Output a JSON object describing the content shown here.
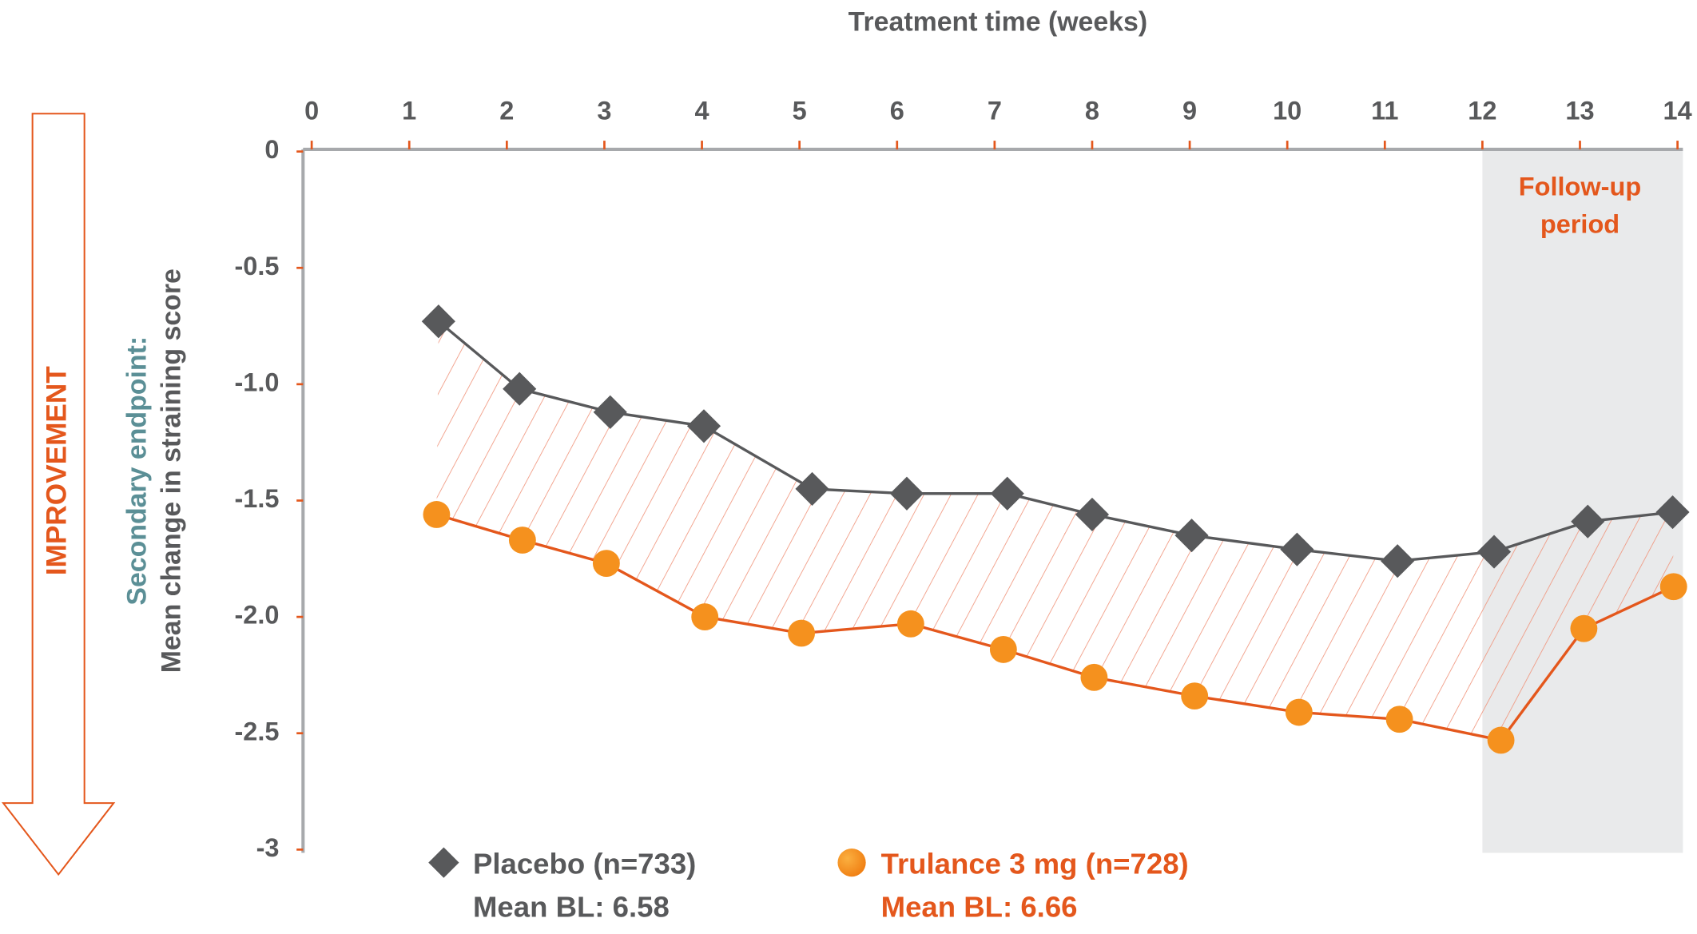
{
  "chart_data": {
    "type": "line",
    "x_label": "Treatment time (weeks)",
    "y_label": [
      "Secondary endpoint:",
      "Mean change in straining score"
    ],
    "side_label": "IMPROVEMENT",
    "xlim": [
      0,
      14
    ],
    "xticks": [
      0,
      1,
      2,
      3,
      4,
      5,
      6,
      7,
      8,
      9,
      10,
      11,
      12,
      13,
      14
    ],
    "ylim": [
      0,
      -3
    ],
    "yticks": [
      0,
      -0.5,
      {
        "value": -1,
        "label": "-1.0"
      },
      -1.5,
      {
        "value": -2,
        "label": "-2.0"
      },
      -2.5,
      -3
    ],
    "shaded_region": {
      "xlim": [
        12,
        14
      ],
      "label": [
        "Follow-up",
        "period"
      ]
    },
    "series": [
      {
        "name": "Placebo (n=733)",
        "baseline": "Mean BL: 6.58",
        "color": "#58595b",
        "marker": "diamond",
        "x": [
          1.3,
          2.13,
          3.06,
          4.02,
          5.13,
          6.1,
          7.13,
          8.0,
          9.02,
          10.1,
          11.13,
          12.12,
          13.08,
          13.95
        ],
        "values": [
          -0.73,
          -1.02,
          -1.12,
          -1.18,
          -1.45,
          -1.47,
          -1.47,
          -1.56,
          -1.65,
          -1.71,
          -1.76,
          -1.72,
          -1.59,
          -1.55
        ]
      },
      {
        "name": "Trulance 3 mg (n=728)",
        "baseline": "Mean BL: 6.66",
        "color": "#e4571c",
        "marker_color": "#f5911e",
        "marker": "circle",
        "x": [
          1.28,
          2.16,
          3.02,
          4.03,
          5.02,
          6.14,
          7.09,
          8.02,
          9.05,
          10.12,
          11.15,
          12.19,
          13.04,
          13.96
        ],
        "values": [
          -1.56,
          -1.67,
          -1.77,
          -2.0,
          -2.07,
          -2.03,
          -2.14,
          -2.26,
          -2.34,
          -2.41,
          -2.44,
          -2.53,
          -2.05,
          -1.87
        ]
      }
    ]
  }
}
